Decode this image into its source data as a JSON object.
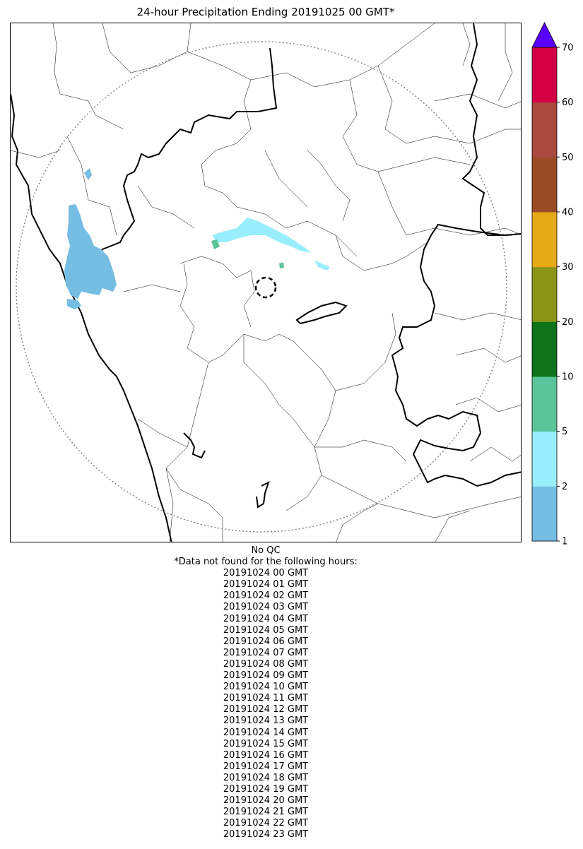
{
  "title": "24-hour Precipitation Ending 20191025 00 GMT*",
  "colorbar": {
    "bins": [
      {
        "from": 1,
        "to": 2,
        "color": "#75bde3"
      },
      {
        "from": 2,
        "to": 5,
        "color": "#98eefc"
      },
      {
        "from": 5,
        "to": 10,
        "color": "#5cc49a"
      },
      {
        "from": 10,
        "to": 20,
        "color": "#0e731b"
      },
      {
        "from": 20,
        "to": 30,
        "color": "#8a9518"
      },
      {
        "from": 30,
        "to": 40,
        "color": "#e6aa18"
      },
      {
        "from": 40,
        "to": 50,
        "color": "#9a4b26"
      },
      {
        "from": 50,
        "to": 60,
        "color": "#a84a40"
      },
      {
        "from": 60,
        "to": 70,
        "color": "#d40045"
      }
    ],
    "extend_color": "#5900ff",
    "tick_labels": [
      "1",
      "2",
      "5",
      "10",
      "20",
      "30",
      "40",
      "50",
      "60",
      "70"
    ]
  },
  "notes": {
    "qc": "No QC",
    "missing_header": "*Data not found for the following hours:",
    "missing_hours": [
      "20191024 00 GMT",
      "20191024 01 GMT",
      "20191024 02 GMT",
      "20191024 03 GMT",
      "20191024 04 GMT",
      "20191024 05 GMT",
      "20191024 06 GMT",
      "20191024 07 GMT",
      "20191024 08 GMT",
      "20191024 09 GMT",
      "20191024 10 GMT",
      "20191024 11 GMT",
      "20191024 12 GMT",
      "20191024 13 GMT",
      "20191024 14 GMT",
      "20191024 15 GMT",
      "20191024 16 GMT",
      "20191024 17 GMT",
      "20191024 18 GMT",
      "20191024 19 GMT",
      "20191024 20 GMT",
      "20191024 21 GMT",
      "20191024 22 GMT",
      "20191024 23 GMT"
    ]
  },
  "map": {
    "radar_range_ring": "dotted",
    "radar_site_marker": "dashed circle",
    "boundary_color": "#000000",
    "range_ring_color": "#808080"
  }
}
